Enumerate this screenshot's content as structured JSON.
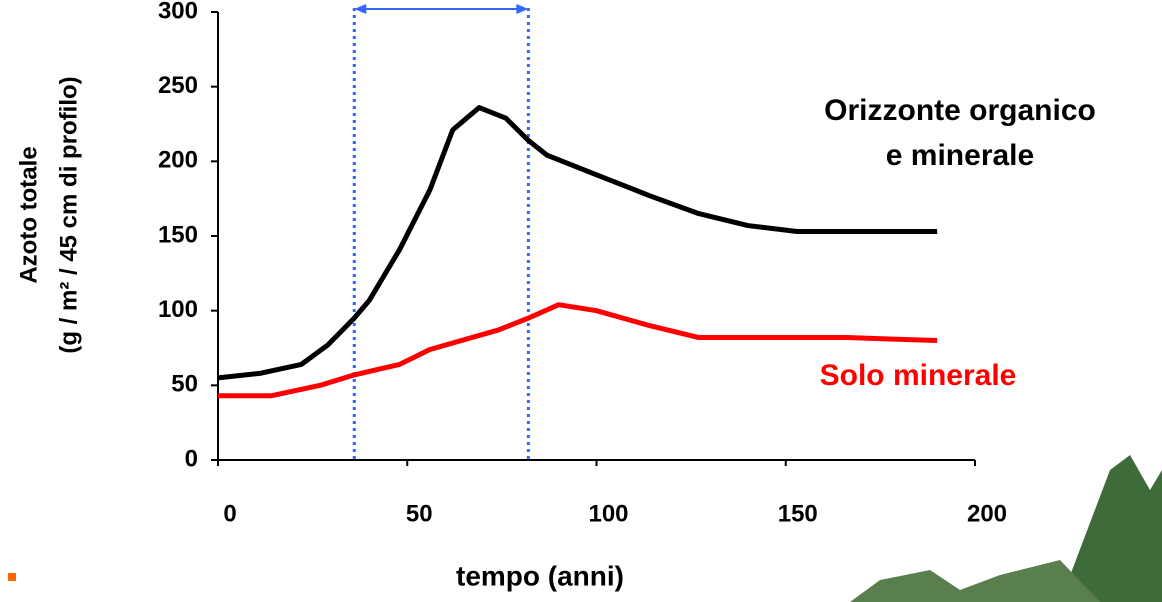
{
  "chart_data": {
    "type": "line",
    "ylabel": [
      "Azoto totale",
      "(g / m² / 45 cm di profilo)"
    ],
    "xlabel": "tempo (anni)",
    "xlim": [
      0,
      200
    ],
    "xticks": [
      0,
      50,
      100,
      150,
      200
    ],
    "ylim": [
      0,
      300
    ],
    "yticks": [
      0,
      50,
      100,
      150,
      200,
      250,
      300
    ],
    "series": [
      {
        "color": "#000000",
        "x": [
          0,
          11,
          22,
          29,
          36,
          40,
          48,
          56,
          62,
          69,
          76,
          82,
          87,
          100,
          114,
          127,
          140,
          153,
          190
        ],
        "values": [
          55,
          58,
          64,
          77,
          95,
          107,
          141,
          181,
          221,
          236,
          229,
          214,
          204,
          191,
          177,
          165,
          157,
          153,
          153
        ]
      },
      {
        "color": "#ff0000",
        "x": [
          0,
          14,
          27,
          36,
          48,
          56,
          74,
          82,
          90,
          100,
          114,
          127,
          153,
          166,
          190
        ],
        "values": [
          43,
          43,
          50,
          57,
          64,
          74,
          87,
          95,
          104,
          100,
          90,
          82,
          82,
          82,
          80
        ]
      }
    ],
    "annotations": [
      {
        "lines": [
          "Orizzonte organico",
          "e minerale"
        ],
        "color": "#000000"
      },
      {
        "lines": [
          "Solo minerale"
        ],
        "color": "#ff0000"
      }
    ],
    "span": {
      "x": [
        36,
        82
      ],
      "color": "#3366ff"
    }
  }
}
